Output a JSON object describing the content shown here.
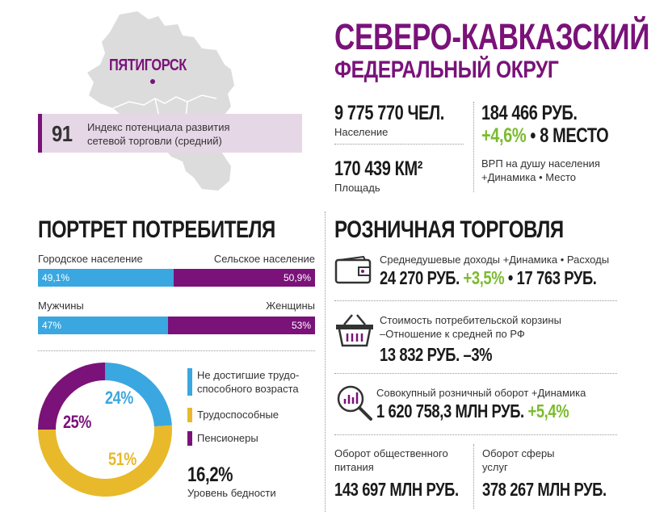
{
  "header": {
    "title_line1": "СЕВЕРО-КАВКАЗСКИЙ",
    "title_line2": "ФЕДЕРАЛЬНЫЙ ОКРУГ",
    "capital": "ПЯТИГОРСК"
  },
  "index": {
    "value": "91",
    "label_line1": "Индекс потенциала развития",
    "label_line2": "сетевой торговли (средний)"
  },
  "stats": {
    "population_value": "9 775 770 ЧЕЛ.",
    "population_label": "Население",
    "area_value": "170 439 КМ²",
    "area_label": "Площадь",
    "grp_value": "184 466 РУБ.",
    "grp_dynamic": "+4,6%",
    "grp_place": " • 8 МЕСТО",
    "grp_label_line1": "ВРП на душу населения",
    "grp_label_line2": "+Динамика • Место"
  },
  "portrait": {
    "heading": "ПОРТРЕТ ПОТРЕБИТЕЛЯ",
    "urban_label": "Городское население",
    "rural_label": "Сельское население",
    "urban_pct": "49,1%",
    "rural_pct": "50,9%",
    "urban_share": 49.1,
    "men_label": "Мужчины",
    "women_label": "Женщины",
    "men_pct": "47%",
    "women_pct": "53%",
    "men_share": 47,
    "donut": {
      "labels": [
        "24%",
        "51%",
        "25%"
      ],
      "values": [
        24,
        51,
        25
      ],
      "colors": [
        "#3aa7e0",
        "#e8b92a",
        "#7a1279"
      ]
    },
    "legend": [
      {
        "line1": "Не достигшие трудо-",
        "line2": "способного возраста",
        "color": "#3aa7e0"
      },
      {
        "line1": "Трудоспособные",
        "line2": "",
        "color": "#e8b92a"
      },
      {
        "line1": "Пенсионеры",
        "line2": "",
        "color": "#7a1279"
      }
    ],
    "poverty_value": "16,2%",
    "poverty_label": "Уровень бедности"
  },
  "retail": {
    "heading": "РОЗНИЧНАЯ ТОРГОВЛЯ",
    "income_label": "Среднедушевые доходы +Динамика • Расходы",
    "income_value": "24 270 РУБ.",
    "income_dynamic": "+3,5%",
    "income_expenses": " • 17 763 РУБ.",
    "basket_label_line1": "Стоимость потребительской корзины",
    "basket_label_line2": "–Отношение к средней по РФ",
    "basket_value": "13 832 РУБ. –3%",
    "turnover_label": "Совокупный розничный оборот +Динамика",
    "turnover_value": "1 620 758,3 МЛН РУБ.",
    "turnover_dynamic": "+5,4%",
    "catering_label_line1": "Оборот общественного",
    "catering_label_line2": "питания",
    "catering_value": "143 697 МЛН РУБ.",
    "services_label_line1": "Оборот сферы",
    "services_label_line2": "услуг",
    "services_value": "378 267 МЛН РУБ."
  },
  "icons": [
    "region-map-icon",
    "wallet-icon",
    "basket-icon",
    "magnifier-chart-icon"
  ]
}
